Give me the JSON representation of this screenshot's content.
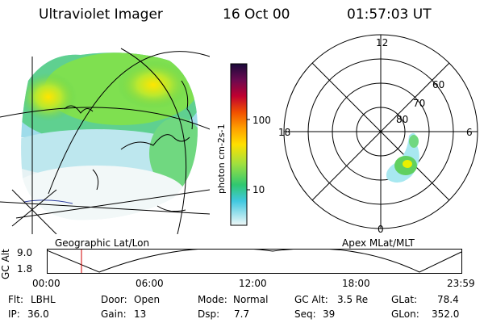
{
  "header": {
    "instrument": "Ultraviolet Imager",
    "date": "16 Oct 00",
    "time": "01:57:03 UT"
  },
  "left_panel": {
    "label": "Geographic Lat/Lon"
  },
  "right_panel": {
    "label": "Apex MLat/MLT",
    "mlt_labels": {
      "top": "12",
      "bottom": "0",
      "left": "18",
      "right": "6"
    },
    "lat_labels": [
      "60",
      "70",
      "80"
    ]
  },
  "colorbar": {
    "title": "photon cm-2s-1",
    "ticks": [
      "100",
      "10"
    ],
    "colors": [
      "#1a0a3a",
      "#3a1050",
      "#6a0a50",
      "#a0003a",
      "#d01010",
      "#f05000",
      "#ff9a00",
      "#ffd000",
      "#e0f000",
      "#a0e040",
      "#50d040",
      "#20c0a0",
      "#40c8e0",
      "#a0e0ee",
      "#e0f0f4"
    ]
  },
  "altitude_strip": {
    "ylabel": "GC Alt",
    "y_ticks": [
      "9.0",
      "1.8"
    ],
    "x_ticks": [
      "00:00",
      "06:00",
      "12:00",
      "18:00",
      "23:59"
    ],
    "marker_time": "01:57"
  },
  "info": {
    "row1": [
      {
        "label": "Flt:",
        "value": "LBHL"
      },
      {
        "label": "Door:",
        "value": "Open"
      },
      {
        "label": "Mode:",
        "value": "Normal"
      },
      {
        "label": "GC Alt:",
        "value": "3.5 Re"
      },
      {
        "label": "GLat:",
        "value": "78.4"
      }
    ],
    "row2": [
      {
        "label": "IP:",
        "value": "36.0"
      },
      {
        "label": "Gain:",
        "value": "13"
      },
      {
        "label": "Dsp:",
        "value": "7.7"
      },
      {
        "label": "Seq:",
        "value": "39"
      },
      {
        "label": "GLon:",
        "value": "352.0"
      }
    ]
  }
}
